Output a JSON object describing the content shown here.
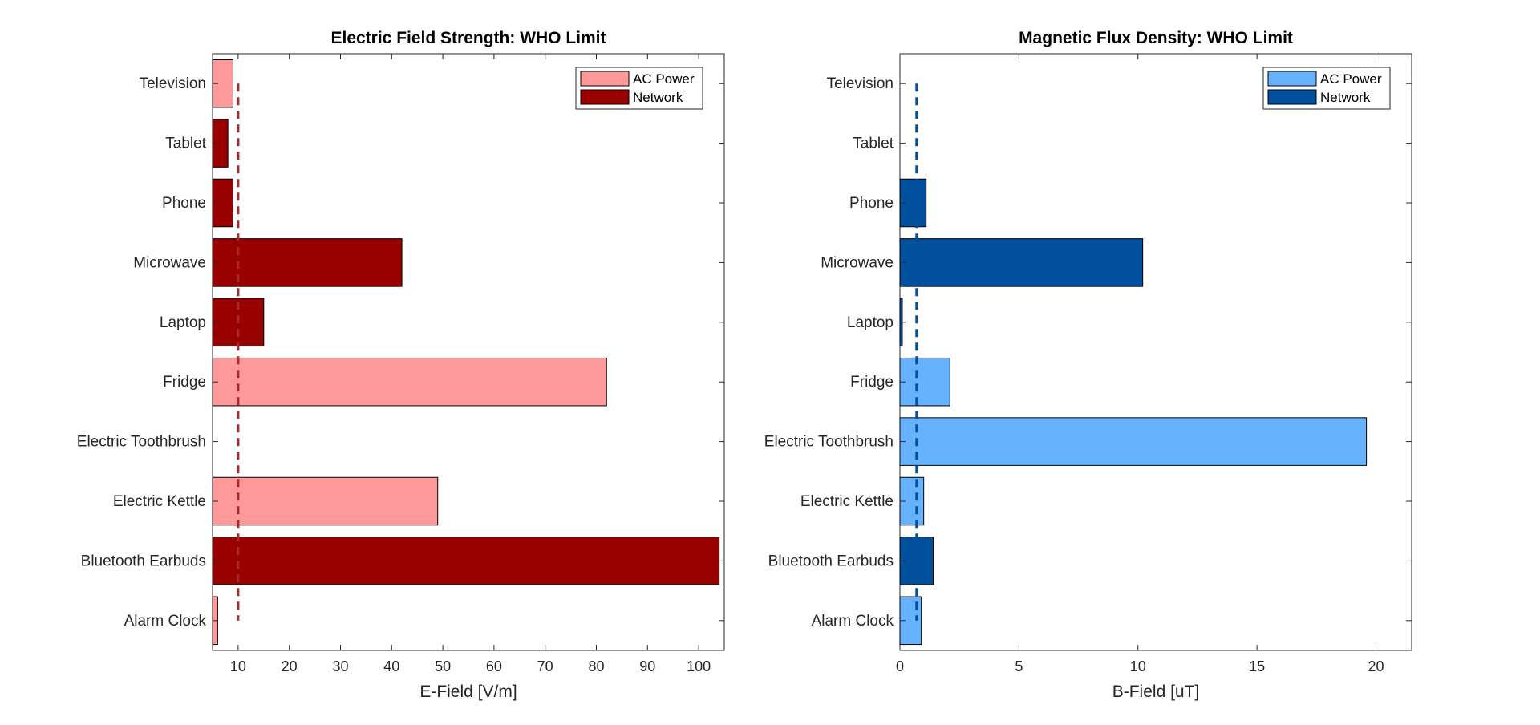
{
  "colors": {
    "ac_power_e": "#ff9999",
    "network_e": "#990000",
    "who_line_e": "#a52a2a",
    "ac_power_b": "#66b2ff",
    "network_b": "#00509e",
    "who_line_b": "#00509e",
    "axis": "#262626",
    "bar_edge": "#000000"
  },
  "chart_data": [
    {
      "type": "bar",
      "orientation": "horizontal",
      "title": "Electric Field Strength: WHO Limit",
      "xlabel": "E-Field [V/m]",
      "ylabel": "",
      "xlim": [
        5,
        105
      ],
      "xticks": [
        10,
        20,
        30,
        40,
        50,
        60,
        70,
        80,
        90,
        100
      ],
      "categories": [
        "Alarm Clock",
        "Bluetooth Earbuds",
        "Electric Kettle",
        "Electric Toothbrush",
        "Fridge",
        "Laptop",
        "Microwave",
        "Phone",
        "Tablet",
        "Television"
      ],
      "values": [
        6,
        104,
        49,
        null,
        82,
        15,
        42,
        9,
        8,
        9
      ],
      "groups": [
        "AC Power",
        "Network",
        "AC Power",
        null,
        "AC Power",
        "Network",
        "Network",
        "Network",
        "Network",
        "AC Power"
      ],
      "legend": {
        "entries": [
          "AC Power",
          "Network"
        ],
        "location": "top-right"
      },
      "reference_line": {
        "value": 10,
        "style": "dashed"
      },
      "grid": false
    },
    {
      "type": "bar",
      "orientation": "horizontal",
      "title": "Magnetic Flux Density: WHO Limit",
      "xlabel": "B-Field [uT]",
      "ylabel": "",
      "xlim": [
        0,
        21.5
      ],
      "xticks": [
        0,
        5,
        10,
        15,
        20
      ],
      "categories": [
        "Alarm Clock",
        "Bluetooth Earbuds",
        "Electric Kettle",
        "Electric Toothbrush",
        "Fridge",
        "Laptop",
        "Microwave",
        "Phone",
        "Tablet",
        "Television"
      ],
      "values": [
        0.9,
        1.4,
        1.0,
        19.6,
        2.1,
        0.1,
        10.2,
        1.1,
        null,
        null
      ],
      "groups": [
        "AC Power",
        "Network",
        "AC Power",
        "AC Power",
        "AC Power",
        "Network",
        "Network",
        "Network",
        null,
        null
      ],
      "legend": {
        "entries": [
          "AC Power",
          "Network"
        ],
        "location": "top-right"
      },
      "reference_line": {
        "value": 0.7,
        "style": "dashed"
      },
      "grid": false
    }
  ]
}
